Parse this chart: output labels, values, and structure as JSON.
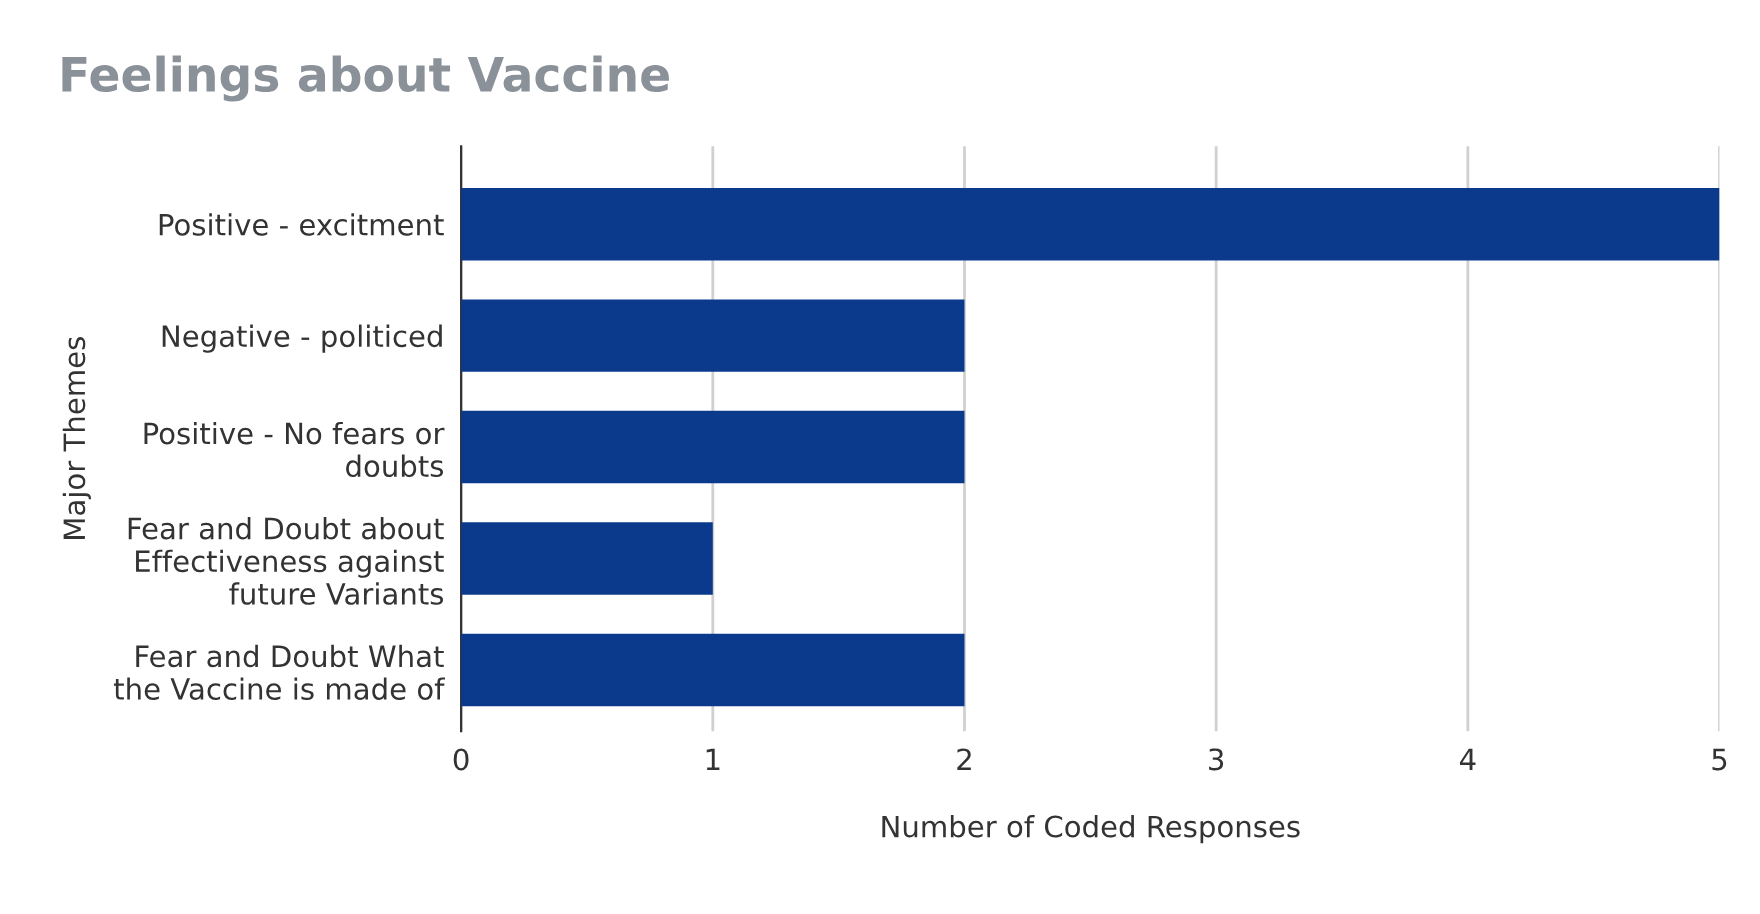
{
  "chart_data": {
    "type": "bar",
    "orientation": "horizontal",
    "title": "Feelings about Vaccine",
    "xlabel": "Number of Coded Responses",
    "ylabel": "Major Themes",
    "categories": [
      "Positive - excitment",
      "Negative - politiced",
      "Positive - No fears or\ndoubts",
      "Fear and Doubt about\nEffectiveness against\nfuture Variants",
      "Fear and Doubt What\nthe Vaccine is made of"
    ],
    "values": [
      5,
      2,
      2,
      1,
      2
    ],
    "color": "#0b3a8c",
    "xlim": [
      0,
      5
    ],
    "xticks": [
      0,
      1,
      2,
      3,
      4,
      5
    ],
    "grid": "x",
    "legend": false
  }
}
